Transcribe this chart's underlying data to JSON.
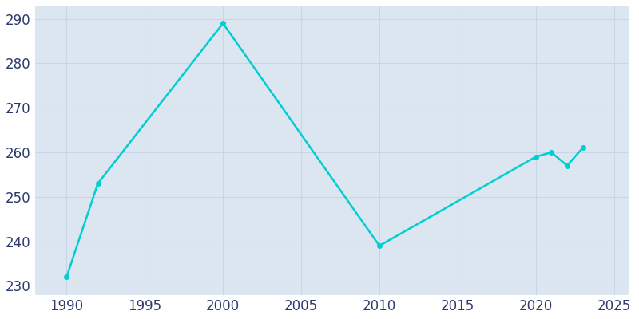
{
  "years": [
    1990,
    1992,
    2000,
    2010,
    2020,
    2021,
    2022,
    2023
  ],
  "population": [
    232,
    253,
    289,
    239,
    259,
    260,
    257,
    261
  ],
  "line_color": "#00CED1",
  "plot_bg_color": "#dce6f0",
  "fig_bg_color": "#ffffff",
  "grid_color": "#c8d4e8",
  "tick_color": "#2d3a6b",
  "xlim": [
    1988,
    2026
  ],
  "ylim": [
    228,
    293
  ],
  "yticks": [
    230,
    240,
    250,
    260,
    270,
    280,
    290
  ],
  "xticks": [
    1990,
    1995,
    2000,
    2005,
    2010,
    2015,
    2020,
    2025
  ],
  "tick_fontsize": 12,
  "linewidth": 1.8,
  "markersize": 4
}
